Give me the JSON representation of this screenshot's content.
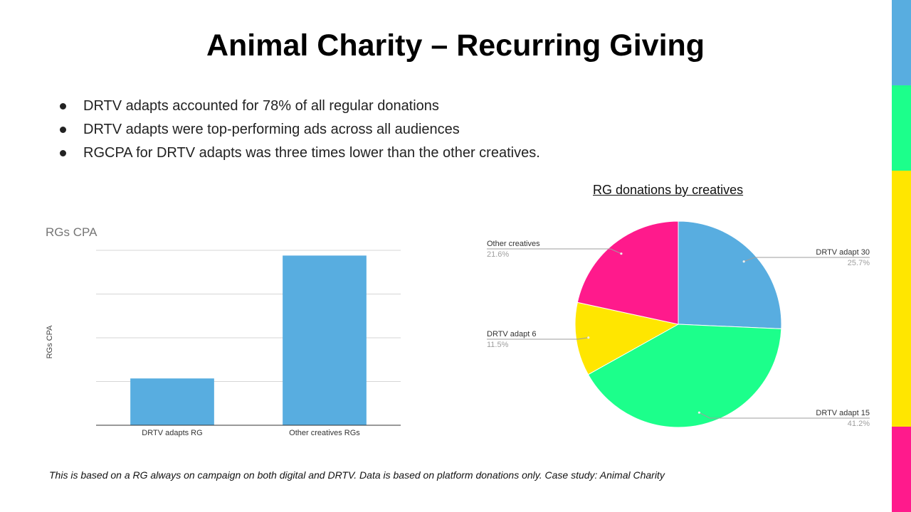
{
  "title": "Animal Charity – Recurring Giving",
  "bullets": [
    "DRTV adapts accounted for 78% of all regular donations",
    "DRTV adapts were top-performing ads across all audiences",
    "RGCPA for DRTV adapts was three times lower than the other creatives."
  ],
  "side_stripe_colors": [
    "#58ade0",
    "#1cff8b",
    "#ffe600",
    "#ff1a8c"
  ],
  "footnote": "This is based on a RG always on campaign on both digital and DRTV.  Data is based on platform donations only. Case study: Animal Charity",
  "pie_heading": "RG donations by creatives",
  "chart_data": [
    {
      "type": "bar",
      "title": "RGs CPA",
      "ylabel": "RGs CPA",
      "xlabel": "",
      "categories": [
        "DRTV adapts RG",
        "Other creatives RGs"
      ],
      "values": [
        1.07,
        3.88
      ],
      "ylim": [
        0,
        4
      ],
      "grid": true,
      "color": "#58ade0"
    },
    {
      "type": "pie",
      "slices": [
        {
          "label": "DRTV adapt 30",
          "pct_label": "25.7%",
          "value": 25.7,
          "color": "#58ade0"
        },
        {
          "label": "DRTV adapt 15",
          "pct_label": "41.2%",
          "value": 41.2,
          "color": "#1cff8b"
        },
        {
          "label": "DRTV adapt 6",
          "pct_label": "11.5%",
          "value": 11.5,
          "color": "#ffe600"
        },
        {
          "label": "Other creatives",
          "pct_label": "21.6%",
          "value": 21.6,
          "color": "#ff1a8c"
        }
      ]
    }
  ]
}
